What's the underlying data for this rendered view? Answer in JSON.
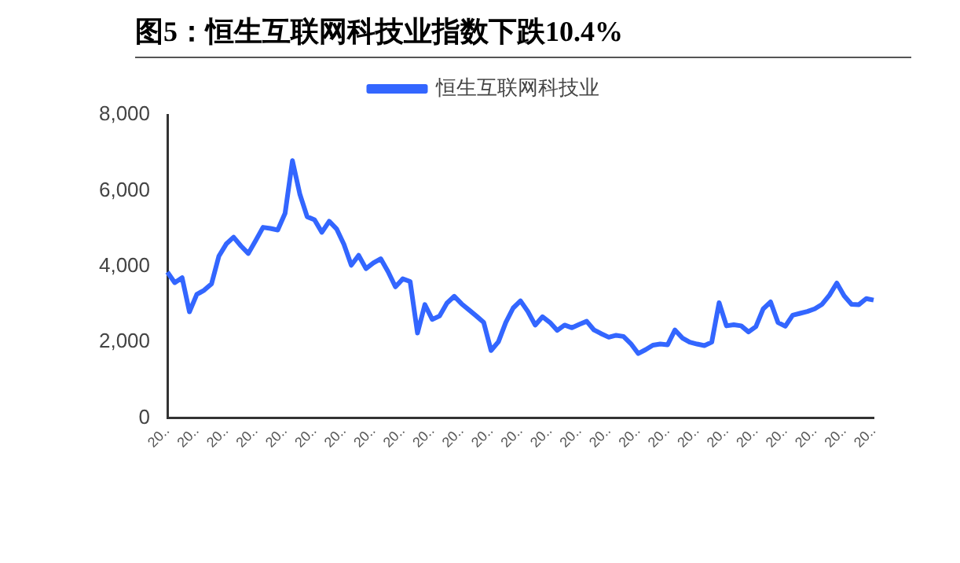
{
  "chart_data": {
    "type": "line",
    "title": "图5：恒生互联网科技业指数下跌10.4%",
    "legend": "top",
    "grid": false,
    "marker": "none",
    "line_style": "solid",
    "categories": [
      "20..",
      null,
      null,
      null,
      "20..",
      null,
      null,
      null,
      "20..",
      null,
      null,
      null,
      "20..",
      null,
      null,
      null,
      "20..",
      null,
      null,
      null,
      "20..",
      null,
      null,
      null,
      "20..",
      null,
      null,
      null,
      "20..",
      null,
      null,
      null,
      "20..",
      null,
      null,
      null,
      "20..",
      null,
      null,
      null,
      "20..",
      null,
      null,
      null,
      "20..",
      null,
      null,
      null,
      "20..",
      null,
      null,
      null,
      "20..",
      null,
      null,
      null,
      "20..",
      null,
      null,
      null,
      "20..",
      null,
      null,
      null,
      "20..",
      null,
      null,
      null,
      "20..",
      null,
      null,
      null,
      "20..",
      null,
      null,
      null,
      "20..",
      null,
      null,
      null,
      "20..",
      null,
      null,
      null,
      "20..",
      null,
      null,
      null,
      "20..",
      null,
      null,
      null,
      "20..",
      null,
      null,
      null,
      "20.."
    ],
    "ylim": [
      0,
      8000
    ],
    "yticks": [
      0,
      {
        "value": 2000,
        "label": "2,000"
      },
      {
        "value": 4000,
        "label": "4,000"
      },
      {
        "value": 6000,
        "label": "6,000"
      },
      {
        "value": 8000,
        "label": "8,000"
      }
    ],
    "series": [
      {
        "name": "恒生互联网科技业",
        "color": "#3366ff",
        "values": [
          3850,
          3570,
          3700,
          2800,
          3260,
          3370,
          3540,
          4270,
          4590,
          4770,
          4540,
          4340,
          4680,
          5030,
          5000,
          4960,
          5400,
          6790,
          5910,
          5310,
          5230,
          4900,
          5190,
          4990,
          4580,
          4030,
          4290,
          3940,
          4090,
          4200,
          3860,
          3460,
          3670,
          3600,
          2240,
          2990,
          2600,
          2690,
          3030,
          3210,
          3010,
          2850,
          2690,
          2520,
          1780,
          2010,
          2520,
          2900,
          3090,
          2810,
          2450,
          2670,
          2520,
          2310,
          2450,
          2380,
          2470,
          2550,
          2320,
          2220,
          2130,
          2180,
          2150,
          1960,
          1700,
          1800,
          1920,
          1950,
          1930,
          2320,
          2110,
          2000,
          1950,
          1910,
          2000,
          3040,
          2430,
          2460,
          2430,
          2270,
          2410,
          2880,
          3060,
          2520,
          2420,
          2710,
          2760,
          2810,
          2880,
          3000,
          3240,
          3560,
          3220,
          3000,
          2990,
          3150,
          3110
        ]
      }
    ]
  }
}
